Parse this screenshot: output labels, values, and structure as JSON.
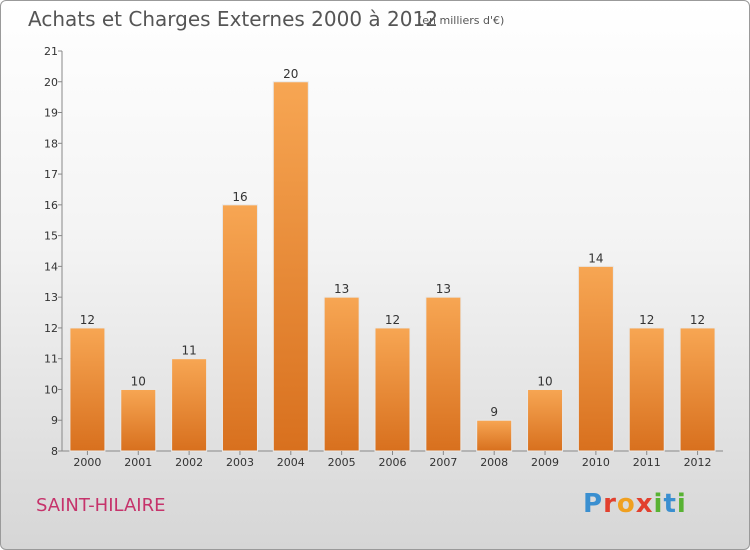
{
  "header": {
    "title": "Achats et Charges Externes 2000 à 2012",
    "unit": "(en milliers d'€)"
  },
  "footer": {
    "place": "SAINT-HILAIRE",
    "logo_text": "Proxiti"
  },
  "colors": {
    "bar_top": "#f7a653",
    "bar_bottom": "#d8701e",
    "title": "#555555",
    "place": "#c6336b"
  },
  "chart_data": {
    "type": "bar",
    "title": "Achats et Charges Externes 2000 à 2012",
    "subtitle": "(en milliers d'€)",
    "categories": [
      "2000",
      "2001",
      "2002",
      "2003",
      "2004",
      "2005",
      "2006",
      "2007",
      "2008",
      "2009",
      "2010",
      "2011",
      "2012"
    ],
    "values": [
      12,
      10,
      11,
      16,
      20,
      13,
      12,
      13,
      9,
      10,
      14,
      12,
      12
    ],
    "ylim": [
      8,
      21
    ],
    "yticks": [
      8,
      9,
      10,
      11,
      12,
      13,
      14,
      15,
      16,
      17,
      18,
      19,
      20,
      21
    ],
    "grid": false,
    "legend": "none"
  }
}
